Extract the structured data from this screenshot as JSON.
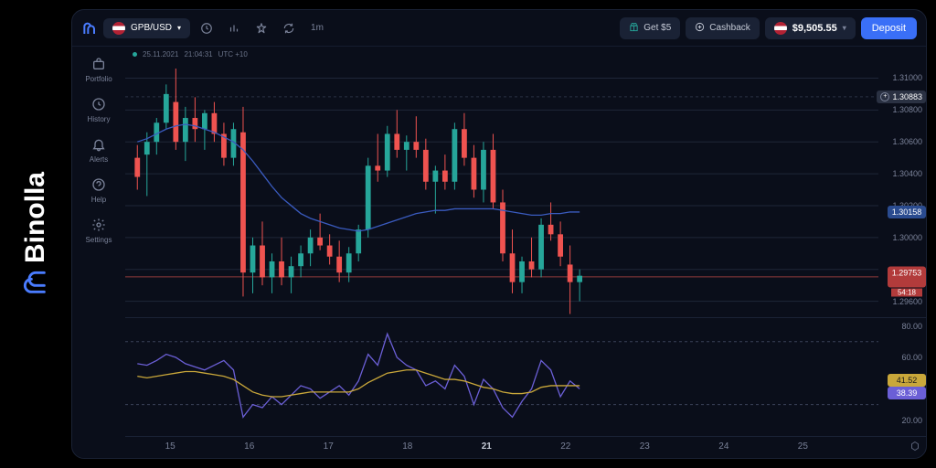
{
  "brand": {
    "name": "Binolla"
  },
  "topbar": {
    "pair": "GPB/USD",
    "timeframe": "1m",
    "get_bonus": "Get $5",
    "cashback": "Cashback",
    "balance": "$9,505.55",
    "deposit": "Deposit"
  },
  "sidebar": {
    "items": [
      {
        "label": "Portfolio",
        "icon": "portfolio"
      },
      {
        "label": "History",
        "icon": "history"
      },
      {
        "label": "Alerts",
        "icon": "alerts"
      },
      {
        "label": "Help",
        "icon": "help"
      },
      {
        "label": "Settings",
        "icon": "settings"
      }
    ]
  },
  "chart_meta": {
    "date": "25.11.2021",
    "time": "21:04:31",
    "tz": "UTC +10"
  },
  "main_chart": {
    "type": "candlestick",
    "ylim": [
      1.295,
      1.311
    ],
    "yticks": [
      1.31,
      1.308,
      1.306,
      1.304,
      1.302,
      1.3,
      1.298,
      1.296
    ],
    "crosshair_price": "1.30883",
    "ma_price": "1.30158",
    "bid_price": "1.29753",
    "countdown": "54:18",
    "colors": {
      "bull": "#26a69a",
      "bear": "#ef5350",
      "ma_line": "#3a5bbf",
      "bid_line": "#8f3a3a",
      "grid": "#1f2738",
      "grid_dash": "#2a3244",
      "bg": "#0a0e1a"
    },
    "candles": [
      {
        "o": 1.305,
        "h": 1.3058,
        "l": 1.303,
        "c": 1.3038
      },
      {
        "o": 1.3052,
        "h": 1.3066,
        "l": 1.3026,
        "c": 1.306
      },
      {
        "o": 1.306,
        "h": 1.3075,
        "l": 1.3052,
        "c": 1.3072
      },
      {
        "o": 1.3072,
        "h": 1.3096,
        "l": 1.3068,
        "c": 1.309
      },
      {
        "o": 1.3085,
        "h": 1.3106,
        "l": 1.3055,
        "c": 1.306
      },
      {
        "o": 1.306,
        "h": 1.3082,
        "l": 1.3048,
        "c": 1.3075
      },
      {
        "o": 1.3075,
        "h": 1.3088,
        "l": 1.306,
        "c": 1.3068
      },
      {
        "o": 1.3068,
        "h": 1.308,
        "l": 1.3055,
        "c": 1.3078
      },
      {
        "o": 1.3078,
        "h": 1.3085,
        "l": 1.306,
        "c": 1.3065
      },
      {
        "o": 1.3065,
        "h": 1.3072,
        "l": 1.3045,
        "c": 1.305
      },
      {
        "o": 1.305,
        "h": 1.3072,
        "l": 1.3045,
        "c": 1.3068
      },
      {
        "o": 1.3066,
        "h": 1.3082,
        "l": 1.2963,
        "c": 1.2978
      },
      {
        "o": 1.2978,
        "h": 1.3,
        "l": 1.2965,
        "c": 1.2995
      },
      {
        "o": 1.2995,
        "h": 1.301,
        "l": 1.297,
        "c": 1.2975
      },
      {
        "o": 1.2975,
        "h": 1.299,
        "l": 1.2965,
        "c": 1.2985
      },
      {
        "o": 1.2985,
        "h": 1.3,
        "l": 1.297,
        "c": 1.2975
      },
      {
        "o": 1.2975,
        "h": 1.2988,
        "l": 1.2965,
        "c": 1.2982
      },
      {
        "o": 1.2982,
        "h": 1.2995,
        "l": 1.2975,
        "c": 1.299
      },
      {
        "o": 1.299,
        "h": 1.3005,
        "l": 1.2982,
        "c": 1.3
      },
      {
        "o": 1.3,
        "h": 1.3015,
        "l": 1.2992,
        "c": 1.2995
      },
      {
        "o": 1.2995,
        "h": 1.3002,
        "l": 1.2983,
        "c": 1.2988
      },
      {
        "o": 1.2988,
        "h": 1.2998,
        "l": 1.2972,
        "c": 1.2978
      },
      {
        "o": 1.2978,
        "h": 1.2994,
        "l": 1.2972,
        "c": 1.299
      },
      {
        "o": 1.299,
        "h": 1.3008,
        "l": 1.2985,
        "c": 1.3005
      },
      {
        "o": 1.3005,
        "h": 1.305,
        "l": 1.3,
        "c": 1.3045
      },
      {
        "o": 1.3045,
        "h": 1.3065,
        "l": 1.3035,
        "c": 1.3042
      },
      {
        "o": 1.3042,
        "h": 1.307,
        "l": 1.3038,
        "c": 1.3065
      },
      {
        "o": 1.3065,
        "h": 1.308,
        "l": 1.305,
        "c": 1.3055
      },
      {
        "o": 1.3055,
        "h": 1.3064,
        "l": 1.3042,
        "c": 1.306
      },
      {
        "o": 1.306,
        "h": 1.3076,
        "l": 1.305,
        "c": 1.3055
      },
      {
        "o": 1.3055,
        "h": 1.3062,
        "l": 1.303,
        "c": 1.3035
      },
      {
        "o": 1.3035,
        "h": 1.3045,
        "l": 1.3015,
        "c": 1.3042
      },
      {
        "o": 1.3042,
        "h": 1.3052,
        "l": 1.303,
        "c": 1.3035
      },
      {
        "o": 1.3035,
        "h": 1.3072,
        "l": 1.303,
        "c": 1.3068
      },
      {
        "o": 1.3068,
        "h": 1.3078,
        "l": 1.3045,
        "c": 1.305
      },
      {
        "o": 1.305,
        "h": 1.3058,
        "l": 1.3025,
        "c": 1.303
      },
      {
        "o": 1.303,
        "h": 1.306,
        "l": 1.3022,
        "c": 1.3055
      },
      {
        "o": 1.3055,
        "h": 1.3065,
        "l": 1.3018,
        "c": 1.3022
      },
      {
        "o": 1.3022,
        "h": 1.303,
        "l": 1.2985,
        "c": 1.299
      },
      {
        "o": 1.299,
        "h": 1.3005,
        "l": 1.2965,
        "c": 1.2972
      },
      {
        "o": 1.2972,
        "h": 1.2988,
        "l": 1.2965,
        "c": 1.2985
      },
      {
        "o": 1.2985,
        "h": 1.3,
        "l": 1.2975,
        "c": 1.298
      },
      {
        "o": 1.298,
        "h": 1.3012,
        "l": 1.2975,
        "c": 1.3008
      },
      {
        "o": 1.3008,
        "h": 1.3022,
        "l": 1.2998,
        "c": 1.3002
      },
      {
        "o": 1.3002,
        "h": 1.301,
        "l": 1.2982,
        "c": 1.2988
      },
      {
        "o": 1.2983,
        "h": 1.2995,
        "l": 1.2952,
        "c": 1.2972
      },
      {
        "o": 1.2972,
        "h": 1.298,
        "l": 1.296,
        "c": 1.2976
      }
    ],
    "ma_line": [
      1.306,
      1.3062,
      1.3065,
      1.3068,
      1.307,
      1.3071,
      1.307,
      1.3068,
      1.3066,
      1.3063,
      1.306,
      1.3055,
      1.3048,
      1.304,
      1.3032,
      1.3025,
      1.302,
      1.3015,
      1.3012,
      1.301,
      1.3008,
      1.3006,
      1.3005,
      1.3004,
      1.3005,
      1.3007,
      1.3009,
      1.3011,
      1.3013,
      1.3015,
      1.3016,
      1.3017,
      1.3017,
      1.3018,
      1.3018,
      1.3018,
      1.3018,
      1.3018,
      1.3017,
      1.3016,
      1.3015,
      1.3014,
      1.3014,
      1.3015,
      1.3015,
      1.3016,
      1.3016
    ]
  },
  "indicator": {
    "type": "rsi",
    "ylim": [
      10,
      85
    ],
    "yticks": [
      80,
      60,
      40,
      20
    ],
    "bands": [
      70,
      30
    ],
    "value1_label": "41.52",
    "value2_label": "38.39",
    "colors": {
      "line1": "#6b5fd6",
      "line2": "#c9a73a",
      "band": "#3a4258"
    },
    "line1": [
      56,
      55,
      58,
      62,
      60,
      56,
      54,
      52,
      55,
      58,
      52,
      22,
      30,
      28,
      35,
      30,
      36,
      42,
      40,
      34,
      38,
      42,
      36,
      45,
      62,
      55,
      75,
      60,
      55,
      52,
      42,
      45,
      40,
      55,
      48,
      30,
      46,
      40,
      28,
      22,
      32,
      40,
      58,
      52,
      35,
      45,
      40
    ],
    "line2": [
      48,
      47,
      48,
      49,
      50,
      51,
      51,
      50,
      49,
      48,
      46,
      42,
      38,
      36,
      35,
      35,
      36,
      37,
      38,
      38,
      38,
      38,
      38,
      40,
      44,
      47,
      50,
      51,
      52,
      52,
      50,
      48,
      46,
      46,
      45,
      43,
      41,
      40,
      38,
      37,
      37,
      38,
      41,
      42,
      42,
      42,
      42
    ]
  },
  "time_axis": {
    "ticks": [
      {
        "label": "15",
        "x": 0.05
      },
      {
        "label": "16",
        "x": 0.155
      },
      {
        "label": "17",
        "x": 0.26
      },
      {
        "label": "18",
        "x": 0.365
      },
      {
        "label": "21",
        "x": 0.47,
        "bold": true
      },
      {
        "label": "22",
        "x": 0.575
      },
      {
        "label": "23",
        "x": 0.68
      },
      {
        "label": "24",
        "x": 0.785
      },
      {
        "label": "25",
        "x": 0.89
      }
    ]
  }
}
